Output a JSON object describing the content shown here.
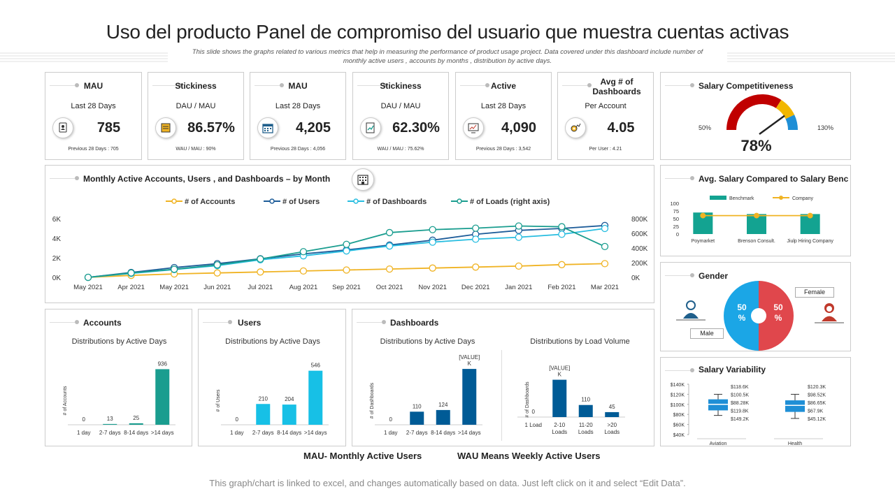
{
  "page": {
    "title": "Uso del producto Panel de compromiso del usuario que muestra cuentas activas",
    "subtitle": "This slide shows the graphs related to various metrics that help in measuring the performance of product usage project. Data covered under this dashboard include number of monthly active users , accounts by months , distribution by active days.",
    "footer_mau": "MAU- Monthly Active Users",
    "footer_wau": "WAU Means Weekly Active Users",
    "note": "This graph/chart is linked to excel, and changes automatically based on data. Just left click on it and select “Edit Data”."
  },
  "kpis": [
    {
      "title": "MAU",
      "sub": "Last 28 Days",
      "value": "785",
      "foot": "Previous 28 Days : 705",
      "icon": "clipboard-user-icon"
    },
    {
      "title": "Stickiness",
      "sub": "DAU / MAU",
      "value": "86.57%",
      "foot": "WAU / MAU : 90%",
      "icon": "document-icon"
    },
    {
      "title": "MAU",
      "sub": "Last 28 Days",
      "value": "4,205",
      "foot": "Previous 28 Days : 4,056",
      "icon": "calendar-icon"
    },
    {
      "title": "Stickiness",
      "sub": "DAU / MAU",
      "value": "62.30%",
      "foot": "WAU / MAU : 75.62%",
      "icon": "report-icon"
    },
    {
      "title": "Active",
      "sub": "Last 28 Days",
      "value": "4,090",
      "foot": "Previous 28 Days : 3,542",
      "icon": "monitor-icon"
    },
    {
      "title": "Avg # of Dashboards",
      "sub": "Per Account",
      "value": "4.05",
      "foot": "Per User : 4.21",
      "icon": "gear-graph-icon"
    }
  ],
  "salary_comp": {
    "title": "Salary Competitiveness",
    "min_label": "50%",
    "max_label": "130%",
    "value_label": "78%",
    "value": 78,
    "min": 50,
    "max": 130,
    "colors": {
      "red": "#c00000",
      "yellow": "#f2b700",
      "blue": "#1f8fd6",
      "needle": "#222222"
    }
  },
  "avg_salary": {
    "title": "Avg. Salary Compared to Salary Benc"
  },
  "gender": {
    "title": "Gender",
    "male_label": "Male",
    "female_label": "Female"
  },
  "salary_var": {
    "title": "Salary Variability"
  },
  "monthly": {
    "title": "Monthly Active Accounts, Users , and Dashboards – by Month"
  },
  "accounts": {
    "title": "Accounts",
    "sub": "Distributions by Active Days"
  },
  "users": {
    "title": "Users",
    "sub": "Distributions by Active Days"
  },
  "dashboards": {
    "title": "Dashboards",
    "sub1": "Distributions by Active Days",
    "sub2": "Distributions by Load Volume"
  },
  "chart_data": [
    {
      "id": "monthly",
      "type": "line",
      "title": "Monthly Active Accounts, Users , and Dashboards – by Month",
      "categories": [
        "May 2021",
        "Apr 2021",
        "May 2021",
        "Jun 2021",
        "Jul 2021",
        "Aug 2021",
        "Sep 2021",
        "Oct 2021",
        "Nov 2021",
        "Dec 2021",
        "Jan 2021",
        "Feb 2021",
        "Mar 2021"
      ],
      "ylim": [
        0,
        6000
      ],
      "yticks": [
        "0K",
        "2K",
        "4K",
        "6K"
      ],
      "y2lim": [
        0,
        800000
      ],
      "y2ticks": [
        "0K",
        "200K",
        "400K",
        "600K",
        "800K"
      ],
      "series": [
        {
          "name": "# of Accounts",
          "color": "#f0b323",
          "axis": "left",
          "values": [
            0,
            200,
            350,
            450,
            550,
            650,
            750,
            850,
            950,
            1050,
            1150,
            1300,
            1400
          ]
        },
        {
          "name": "# of Users",
          "color": "#1d5c99",
          "axis": "left",
          "values": [
            0,
            500,
            1000,
            1400,
            1900,
            2400,
            2800,
            3300,
            3800,
            4400,
            4800,
            5000,
            5300
          ]
        },
        {
          "name": "# of Dashboards",
          "color": "#27bde0",
          "axis": "left",
          "values": [
            0,
            400,
            800,
            1200,
            1800,
            2200,
            2700,
            3200,
            3600,
            3900,
            4100,
            4400,
            5000
          ]
        },
        {
          "name": "# of Loads (right axis)",
          "color": "#1a9d8f",
          "axis": "right",
          "values": [
            0,
            60000,
            110000,
            170000,
            250000,
            350000,
            450000,
            610000,
            650000,
            670000,
            700000,
            690000,
            420000
          ]
        }
      ]
    },
    {
      "id": "accounts",
      "type": "bar",
      "title": "Distributions by Active Days",
      "ylabel": "# of Accounts",
      "categories": [
        "1 day",
        "2-7 days",
        "8-14 days",
        ">14 days"
      ],
      "values": [
        0,
        13,
        25,
        936
      ],
      "value_labels": [
        "0",
        "13",
        "25",
        "936"
      ],
      "colors": [
        "#1a9d8f",
        "#1a9d8f",
        "#1a9d8f",
        "#1a9d8f"
      ],
      "ylim": [
        0,
        1000
      ]
    },
    {
      "id": "users",
      "type": "bar",
      "title": "Distributions by Active Days",
      "ylabel": "# of Users",
      "categories": [
        "1 day",
        "2-7 days",
        "8-14 days",
        ">14 days"
      ],
      "values": [
        0,
        210,
        204,
        546
      ],
      "value_labels": [
        "0",
        "210",
        "204",
        "546"
      ],
      "colors": [
        "#17c0e6",
        "#17c0e6",
        "#17c0e6",
        "#17c0e6"
      ],
      "ylim": [
        0,
        600
      ]
    },
    {
      "id": "dash_days",
      "type": "bar",
      "title": "Distributions by Active Days",
      "ylabel": "# of Dashboards",
      "categories": [
        "1 day",
        "2-7 days",
        "8-14 days",
        ">14 days"
      ],
      "values": [
        0,
        110,
        124,
        470
      ],
      "value_labels": [
        "0",
        "110",
        "124",
        "[VALUE]\nK"
      ],
      "colors": [
        "#005b96",
        "#005b96",
        "#005b96",
        "#005b96"
      ],
      "ylim": [
        0,
        500
      ]
    },
    {
      "id": "dash_load",
      "type": "bar",
      "title": "Distributions by Load Volume",
      "ylabel": "# of Dashboards",
      "categories": [
        "1 Load",
        "2-10\nLoads",
        "11-20\nLoads",
        ">20\nLoads"
      ],
      "values": [
        0,
        340,
        110,
        45
      ],
      "value_labels": [
        "0",
        "[VALUE]\nK",
        "110",
        "45"
      ],
      "colors": [
        "#005b96",
        "#005b96",
        "#005b96",
        "#005b96"
      ],
      "ylim": [
        0,
        420
      ]
    },
    {
      "id": "avg_salary",
      "type": "bar",
      "title": "Avg. Salary Compared to Salary Benc",
      "categories": [
        "Poymarket",
        "Brenson Consult.",
        "Jiulp Hiring Company"
      ],
      "series": [
        {
          "name": "Benchmark",
          "color": "#13a391",
          "values": [
            70,
            65,
            65
          ]
        },
        {
          "name": "Company",
          "color": "#f0b323",
          "values": [
            60,
            60,
            60
          ]
        }
      ],
      "ylim": [
        0,
        100
      ],
      "yticks": [
        "0",
        "25",
        "50",
        "75",
        "100"
      ]
    },
    {
      "id": "gender",
      "type": "pie",
      "title": "Gender",
      "labels": [
        "Male",
        "Female"
      ],
      "values": [
        50,
        50
      ],
      "value_labels": [
        "50\n%",
        "50\n%"
      ],
      "colors": [
        "#1ba6e6",
        "#e0474c"
      ]
    },
    {
      "id": "salary_var",
      "type": "box",
      "title": "Salary Variability",
      "categories": [
        "Aviation",
        "Health"
      ],
      "yticks": [
        "$40K",
        "$60K",
        "$80K",
        "$100K",
        "$120K",
        "$140K"
      ],
      "ylim": [
        40,
        140
      ],
      "boxes": [
        {
          "labels": [
            "$118.6K",
            "$100.5K",
            "$88.28K",
            "$119.8K",
            "$149.2K"
          ],
          "whisker_low": 78,
          "q1": 88,
          "median": 100,
          "q3": 110,
          "whisker_high": 120
        },
        {
          "labels": [
            "$120.3K",
            "$98.52K",
            "$86.65K",
            "$67.9K",
            "$45.12K"
          ],
          "whisker_low": 72,
          "q1": 85,
          "median": 98,
          "q3": 108,
          "whisker_high": 120
        }
      ],
      "color": "#1f8fd6"
    }
  ]
}
